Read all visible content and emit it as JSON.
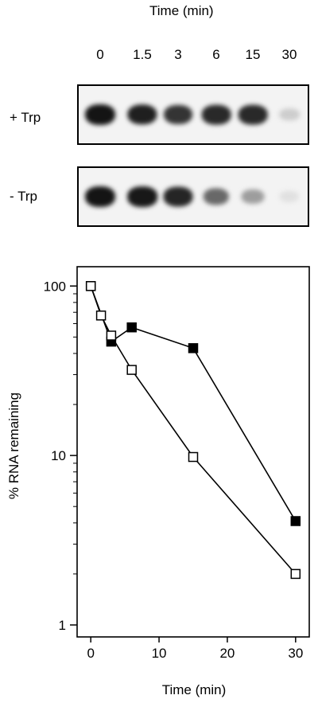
{
  "gel": {
    "title": "Time (min)",
    "lanes": [
      "0",
      "1.5",
      "3",
      "6",
      "15",
      "30"
    ],
    "rows": [
      {
        "label": "+ Trp",
        "intensity": [
          1.0,
          0.95,
          0.85,
          0.9,
          0.9,
          0.12
        ]
      },
      {
        "label": "- Trp",
        "intensity": [
          1.0,
          0.98,
          0.92,
          0.6,
          0.35,
          0.03
        ]
      }
    ]
  },
  "chart_data": {
    "type": "line",
    "xlabel": "Time (min)",
    "ylabel": "% RNA remaining",
    "xlim": [
      -2,
      32
    ],
    "ylim": [
      0.85,
      130
    ],
    "yscale": "log",
    "x_ticks": [
      "0",
      "10",
      "20",
      "30"
    ],
    "y_ticks": [
      "1",
      "10",
      "100"
    ],
    "grid": false,
    "series": [
      {
        "marker": "filled-square",
        "color": "#000000",
        "x": [
          0,
          3,
          6,
          15,
          30
        ],
        "y": [
          100,
          47,
          57,
          43,
          4.1
        ]
      },
      {
        "marker": "open-square",
        "color": "#000000",
        "x": [
          0,
          1.5,
          3,
          6,
          15,
          30
        ],
        "y": [
          100,
          67,
          51,
          32,
          9.8,
          2.0
        ]
      }
    ]
  }
}
